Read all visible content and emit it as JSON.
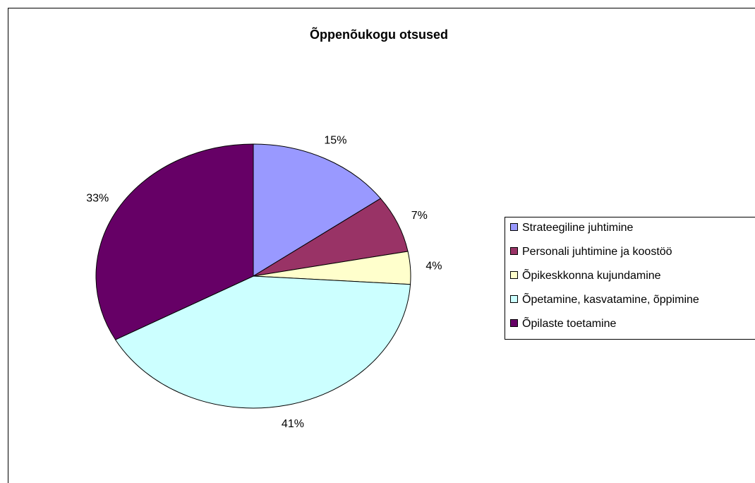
{
  "chart_data": {
    "type": "pie",
    "title": "Õppenõukogu otsused",
    "categories": [
      "Strateegiline juhtimine",
      "Personali juhtimine ja koostöö",
      "Õpikeskkonna kujundamine",
      "Õpetamine, kasvatamine, õppimine",
      "Õpilaste toetamine"
    ],
    "values": [
      15,
      7,
      4,
      41,
      33
    ],
    "value_labels": [
      "15%",
      "7%",
      "4%",
      "41%",
      "33%"
    ],
    "colors": [
      "#9999ff",
      "#993366",
      "#ffffcc",
      "#ccffff",
      "#660066"
    ],
    "legend": "right"
  }
}
